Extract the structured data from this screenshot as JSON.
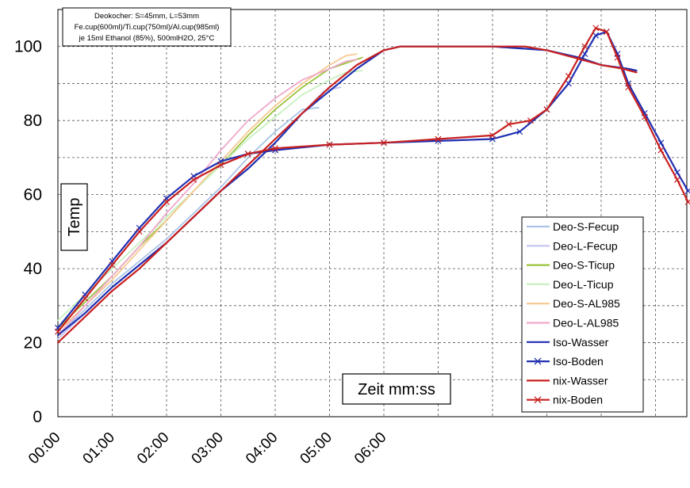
{
  "chart_data": {
    "type": "line",
    "title_box": [
      "Deokocher: S=45mm, L=53mm",
      "Fe.cup(600ml)/Ti.cup(750ml)/Al.cup(985ml)",
      "je 15ml Ethanol (85%), 500mlH2O, 25°C"
    ],
    "xlabel": "Zeit mm:ss",
    "ylabel": "Temp",
    "x_ticks": [
      "00:00",
      "01:00",
      "02:00",
      "03:00",
      "04:00",
      "05:00",
      "06:00"
    ],
    "x_unit_note": "x values in minutes",
    "xlim": [
      0,
      11.6
    ],
    "ylim": [
      0,
      110
    ],
    "y_ticks": [
      0,
      20,
      40,
      60,
      80,
      100
    ],
    "grid": "dashed",
    "legend_position": "right",
    "series": [
      {
        "name": "Deo-S-Fecup",
        "color": "#a9c4e8",
        "marker": "none",
        "points": [
          [
            0,
            22
          ],
          [
            0.5,
            29
          ],
          [
            1,
            36
          ],
          [
            1.5,
            42
          ],
          [
            2,
            48
          ],
          [
            2.5,
            55
          ],
          [
            3,
            62
          ],
          [
            3.5,
            70
          ],
          [
            4,
            77
          ],
          [
            4.5,
            83
          ],
          [
            4.8,
            83.5
          ]
        ]
      },
      {
        "name": "Deo-L-Fecup",
        "color": "#c3c3f0",
        "marker": "none",
        "points": [
          [
            0,
            21
          ],
          [
            0.5,
            28
          ],
          [
            1,
            35
          ],
          [
            1.5,
            41
          ],
          [
            2,
            47
          ],
          [
            2.5,
            54
          ],
          [
            3,
            61
          ],
          [
            3.5,
            68
          ],
          [
            4,
            75
          ],
          [
            4.5,
            82
          ],
          [
            4.9,
            88
          ],
          [
            5.2,
            89
          ]
        ]
      },
      {
        "name": "Deo-S-Ticup",
        "color": "#99c33a",
        "marker": "none",
        "points": [
          [
            0,
            24
          ],
          [
            0.5,
            31
          ],
          [
            1,
            38
          ],
          [
            1.5,
            46
          ],
          [
            2,
            53
          ],
          [
            2.5,
            61
          ],
          [
            3,
            68
          ],
          [
            3.5,
            76
          ],
          [
            4,
            83
          ],
          [
            4.5,
            89
          ],
          [
            5,
            94
          ],
          [
            5.4,
            96
          ],
          [
            5.6,
            97
          ]
        ]
      },
      {
        "name": "Deo-L-Ticup",
        "color": "#c8f0c0",
        "marker": "none",
        "points": [
          [
            0,
            26
          ],
          [
            0.5,
            33
          ],
          [
            1,
            40
          ],
          [
            1.5,
            47
          ],
          [
            2,
            54
          ],
          [
            2.5,
            61
          ],
          [
            3,
            68
          ],
          [
            3.5,
            75
          ],
          [
            4,
            81
          ],
          [
            4.5,
            87
          ],
          [
            5,
            91
          ],
          [
            5.3,
            93
          ],
          [
            5.6,
            93.5
          ]
        ]
      },
      {
        "name": "Deo-S-AL985",
        "color": "#f8c890",
        "marker": "none",
        "points": [
          [
            0,
            23
          ],
          [
            0.5,
            30
          ],
          [
            1,
            37
          ],
          [
            1.5,
            45
          ],
          [
            2,
            53
          ],
          [
            2.5,
            61
          ],
          [
            3,
            69
          ],
          [
            3.5,
            77
          ],
          [
            4,
            84
          ],
          [
            4.5,
            90
          ],
          [
            5,
            95
          ],
          [
            5.3,
            97.5
          ],
          [
            5.5,
            98
          ]
        ]
      },
      {
        "name": "Deo-L-AL985",
        "color": "#f0a8cc",
        "marker": "none",
        "points": [
          [
            0,
            22
          ],
          [
            0.5,
            30
          ],
          [
            1,
            38
          ],
          [
            1.5,
            46
          ],
          [
            2,
            55
          ],
          [
            2.5,
            63
          ],
          [
            3,
            72
          ],
          [
            3.5,
            80
          ],
          [
            4,
            86
          ],
          [
            4.5,
            91
          ],
          [
            5,
            94
          ],
          [
            5.3,
            96
          ],
          [
            5.5,
            96.5
          ]
        ]
      },
      {
        "name": "Iso-Wasser",
        "color": "#1f2fb0",
        "marker": "none",
        "points": [
          [
            0,
            22
          ],
          [
            0.5,
            28
          ],
          [
            1,
            35
          ],
          [
            1.5,
            41
          ],
          [
            2,
            47
          ],
          [
            2.5,
            54
          ],
          [
            3,
            61
          ],
          [
            3.5,
            67
          ],
          [
            4,
            74
          ],
          [
            4.5,
            82
          ],
          [
            5,
            88
          ],
          [
            5.5,
            94
          ],
          [
            6,
            99
          ],
          [
            6.3,
            100
          ],
          [
            7,
            100
          ],
          [
            8,
            100
          ],
          [
            9,
            99
          ],
          [
            9.6,
            97
          ],
          [
            10,
            95
          ],
          [
            10.5,
            94
          ],
          [
            10.65,
            93.5
          ]
        ]
      },
      {
        "name": "Iso-Boden",
        "color": "#1f2fb0",
        "marker": "x",
        "points": [
          [
            0,
            24
          ],
          [
            0.5,
            33
          ],
          [
            1,
            42
          ],
          [
            1.5,
            51
          ],
          [
            2,
            59
          ],
          [
            2.5,
            65
          ],
          [
            3,
            69
          ],
          [
            3.5,
            71
          ],
          [
            4,
            72
          ],
          [
            5,
            73.5
          ],
          [
            6,
            74
          ],
          [
            7,
            74.5
          ],
          [
            8,
            75
          ],
          [
            8.5,
            77
          ],
          [
            9,
            83
          ],
          [
            9.4,
            90
          ],
          [
            9.7,
            98
          ],
          [
            9.9,
            103
          ],
          [
            10.1,
            104
          ],
          [
            10.3,
            98
          ],
          [
            10.5,
            90
          ],
          [
            10.8,
            82
          ],
          [
            11.1,
            74
          ],
          [
            11.4,
            66
          ],
          [
            11.6,
            61
          ]
        ]
      },
      {
        "name": "nix-Wasser",
        "color": "#c82020",
        "marker": "none",
        "points": [
          [
            0,
            20
          ],
          [
            0.5,
            27
          ],
          [
            1,
            34
          ],
          [
            1.5,
            40
          ],
          [
            2,
            47
          ],
          [
            2.5,
            54
          ],
          [
            3,
            61
          ],
          [
            3.5,
            68
          ],
          [
            4,
            75
          ],
          [
            4.5,
            82
          ],
          [
            5,
            89
          ],
          [
            5.5,
            95
          ],
          [
            6,
            99
          ],
          [
            6.3,
            100
          ],
          [
            7,
            100
          ],
          [
            8,
            100
          ],
          [
            8.6,
            100
          ],
          [
            9,
            99
          ],
          [
            9.5,
            97
          ],
          [
            10,
            95
          ],
          [
            10.4,
            94
          ],
          [
            10.65,
            93
          ]
        ]
      },
      {
        "name": "nix-Boden",
        "color": "#c82020",
        "marker": "x",
        "points": [
          [
            0,
            23
          ],
          [
            0.5,
            32
          ],
          [
            1,
            41
          ],
          [
            1.5,
            50
          ],
          [
            2,
            58
          ],
          [
            2.5,
            64
          ],
          [
            3,
            68
          ],
          [
            3.5,
            71
          ],
          [
            4,
            72.5
          ],
          [
            5,
            73.5
          ],
          [
            6,
            74
          ],
          [
            7,
            75
          ],
          [
            8,
            76
          ],
          [
            8.3,
            79
          ],
          [
            8.7,
            80
          ],
          [
            9,
            83
          ],
          [
            9.4,
            92
          ],
          [
            9.7,
            100
          ],
          [
            9.9,
            105
          ],
          [
            10.1,
            104
          ],
          [
            10.3,
            97
          ],
          [
            10.5,
            89
          ],
          [
            10.8,
            81
          ],
          [
            11.1,
            72
          ],
          [
            11.4,
            64
          ],
          [
            11.6,
            58
          ]
        ]
      }
    ]
  }
}
